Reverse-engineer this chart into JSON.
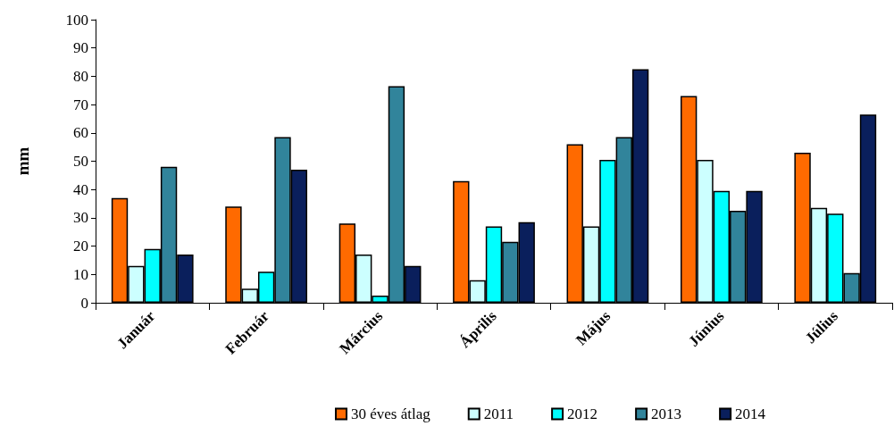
{
  "chart_data": {
    "type": "bar",
    "ylabel": "mm",
    "categories": [
      "Január",
      "Február",
      "Március",
      "Április",
      "Május",
      "Június",
      "Július"
    ],
    "series": [
      {
        "name": "30 éves átlag",
        "color": "#ff6a00",
        "values": [
          37,
          34,
          28,
          43,
          56,
          73,
          53
        ]
      },
      {
        "name": "2011",
        "color": "#ccffff",
        "values": [
          13,
          5,
          17,
          8,
          27,
          50.5,
          33.5
        ]
      },
      {
        "name": "2012",
        "color": "#00ffff",
        "values": [
          19,
          11,
          2.5,
          27,
          50.5,
          39.5,
          31.5
        ]
      },
      {
        "name": "2013",
        "color": "#31849b",
        "values": [
          48,
          58.5,
          76.5,
          21.5,
          58.5,
          32.5,
          10.5
        ]
      },
      {
        "name": "2014",
        "color": "#0a1f5c",
        "values": [
          17,
          47,
          13,
          28.5,
          82.5,
          39.5,
          66.5
        ]
      }
    ],
    "ylim": [
      0,
      100
    ],
    "yticks": [
      0,
      10,
      20,
      30,
      40,
      50,
      60,
      70,
      80,
      90,
      100
    ],
    "grid": false,
    "legend": "bottom"
  }
}
